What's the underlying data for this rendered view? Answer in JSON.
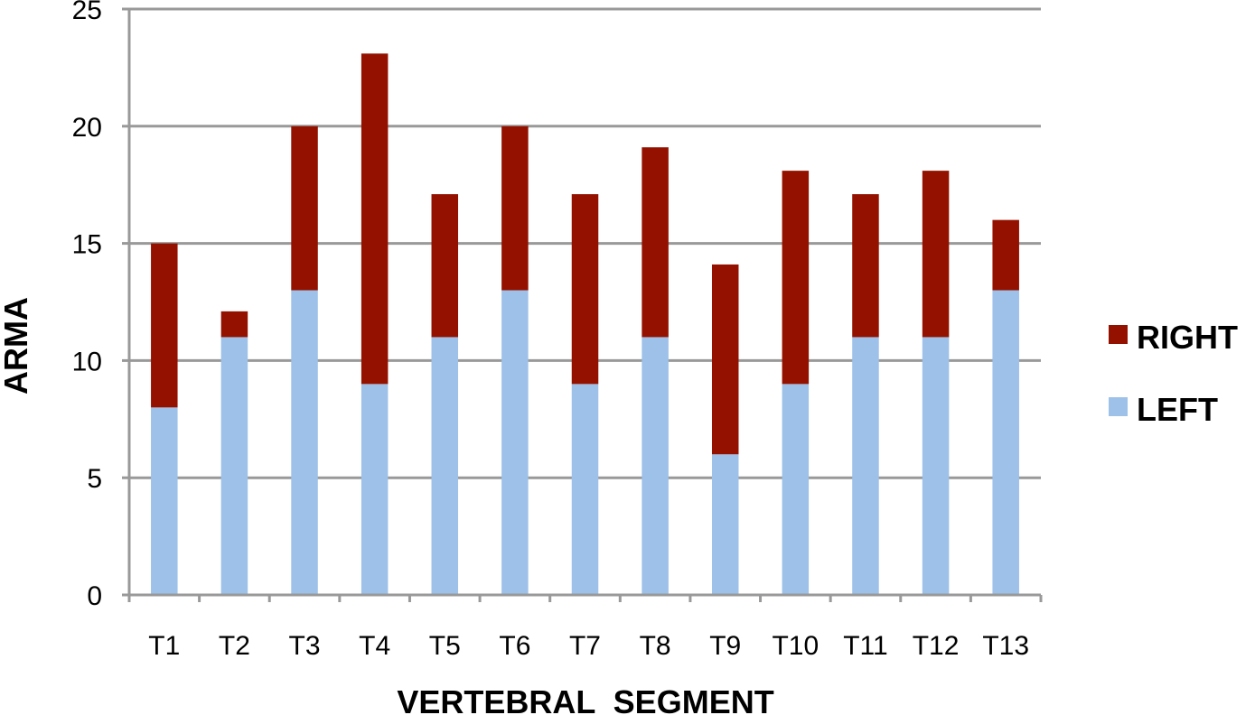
{
  "chart_data": {
    "type": "bar",
    "stacked": true,
    "categories": [
      "T1",
      "T2",
      "T3",
      "T4",
      "T5",
      "T6",
      "T7",
      "T8",
      "T9",
      "T10",
      "T11",
      "T12",
      "T13"
    ],
    "series": [
      {
        "name": "LEFT",
        "color": "#9dc1e8",
        "values": [
          8,
          11,
          13,
          9,
          11,
          13,
          9,
          11,
          6,
          9,
          11,
          11,
          13
        ]
      },
      {
        "name": "RIGHT",
        "color": "#941100",
        "values": [
          7,
          1.1,
          7,
          14.1,
          6.1,
          7,
          8.1,
          8.1,
          8.1,
          9.1,
          6.1,
          7.1,
          3
        ]
      }
    ],
    "xlabel": "VERTEBRAL  SEGMENT",
    "ylabel": "ARMA",
    "ylim": [
      0,
      25
    ],
    "yticks": [
      0,
      5,
      10,
      15,
      20,
      25
    ],
    "grid": true,
    "gridColor": "#999999",
    "legend": {
      "position": "right",
      "entries": [
        {
          "label": "RIGHT",
          "color": "#941100"
        },
        {
          "label": "LEFT",
          "color": "#9dc1e8"
        }
      ]
    }
  }
}
